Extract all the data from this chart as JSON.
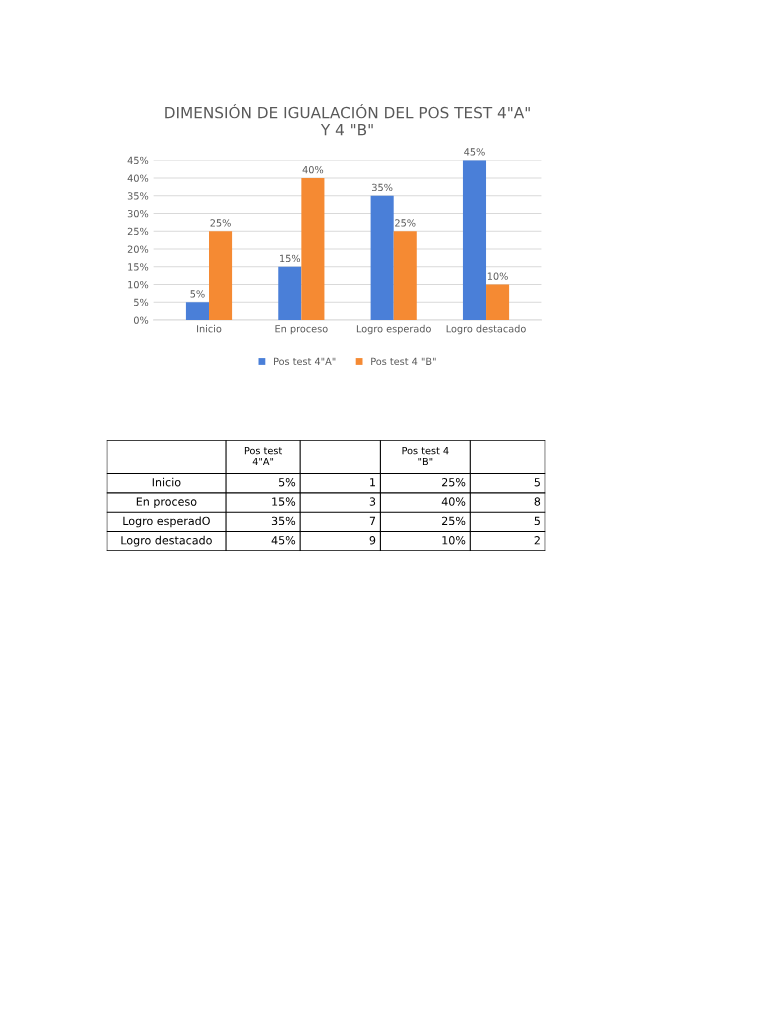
{
  "chart_data": [
    {
      "type": "bar",
      "title": "DIMENSIÓN DE IGUALACIÓN DEL POS TEST 4\"A\"\nY 4 \"B\"",
      "categories": [
        "Inicio",
        "En proceso",
        "Logro esperado",
        "Logro destacado"
      ],
      "series": [
        {
          "name": "Pos test 4\"A\"",
          "color": "#4a7fd8",
          "values": [
            5,
            15,
            35,
            45
          ],
          "value_labels": [
            "5%",
            "15%",
            "35%",
            "45%"
          ]
        },
        {
          "name": "Pos test 4 \"B\"",
          "color": "#f58a33",
          "values": [
            25,
            40,
            25,
            10
          ],
          "value_labels": [
            "25%",
            "40%",
            "25%",
            "10%"
          ]
        }
      ],
      "ylim": [
        0,
        45
      ],
      "yticks": [
        {
          "value": 0,
          "label": "0%"
        },
        {
          "value": 5,
          "label": "5%"
        },
        {
          "value": 10,
          "label": "10%"
        },
        {
          "value": 15,
          "label": "15%"
        },
        {
          "value": 20,
          "label": "20%"
        },
        {
          "value": 25,
          "label": "25%"
        },
        {
          "value": 30,
          "label": "30%"
        },
        {
          "value": 35,
          "label": "35%"
        },
        {
          "value": 40,
          "label": "40%"
        },
        {
          "value": 45,
          "label": "45%"
        }
      ],
      "grid": "y",
      "legend": "bottom"
    },
    {
      "type": "other",
      "categories": [
        "Pos test\n4\"A\"",
        null,
        "Pos test 4\n\"B\"",
        null
      ],
      "y_categories": [
        "Inicio",
        "En proceso",
        "Logro esperadO",
        "Logro destacado"
      ],
      "cell_labels": [
        [
          "5%",
          "1",
          "25%",
          "5"
        ],
        [
          "15%",
          "3",
          "40%",
          "8"
        ],
        [
          "35%",
          "7",
          "25%",
          "5"
        ],
        [
          "45%",
          "9",
          "10%",
          "2"
        ]
      ]
    }
  ]
}
